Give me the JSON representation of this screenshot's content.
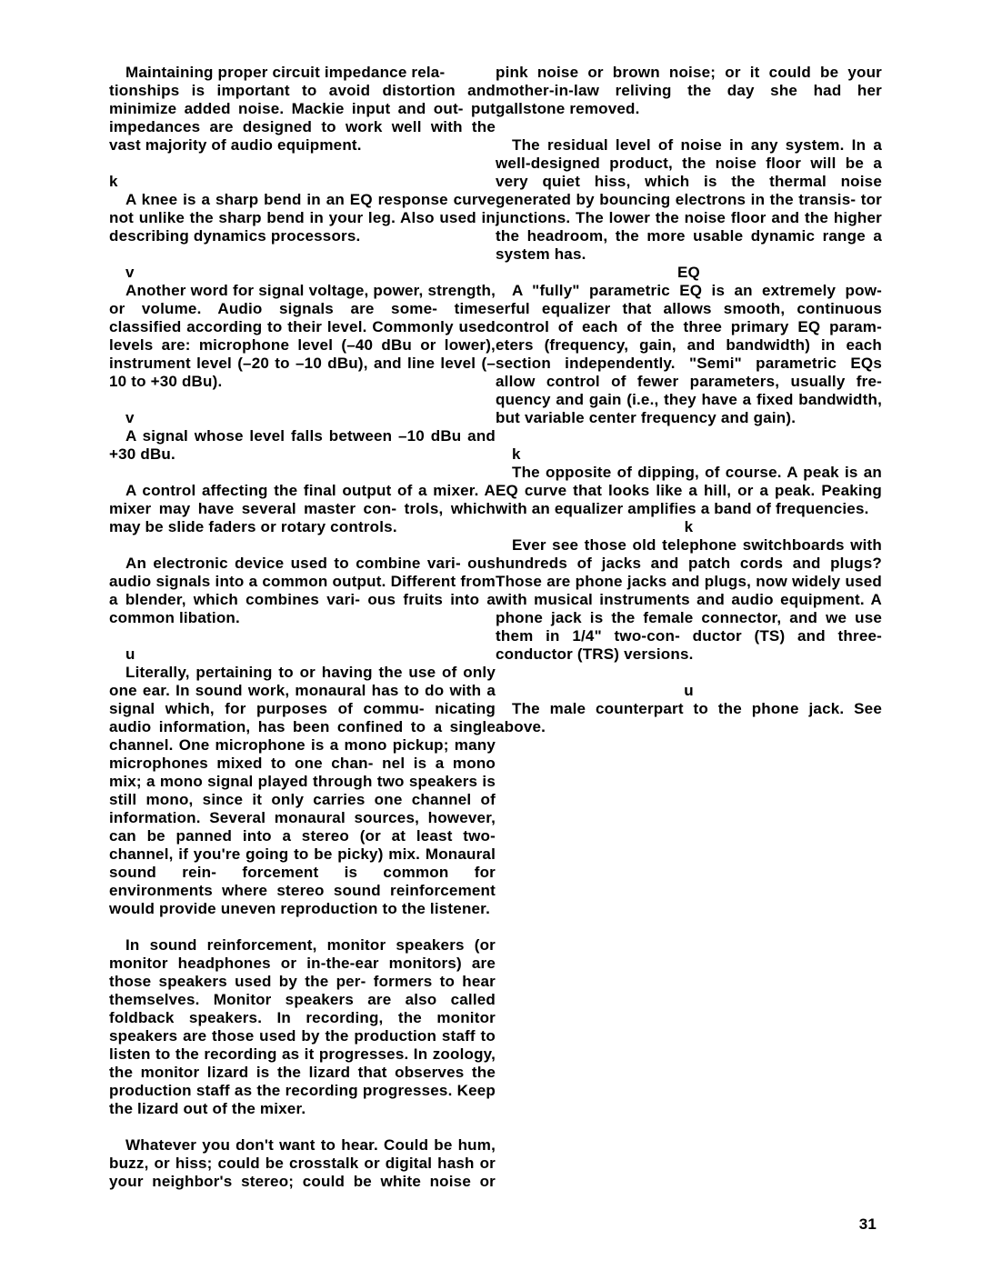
{
  "page_number": "31",
  "entries": [
    {
      "lead_in": "Maintaining proper circuit impedance rela-",
      "term": null,
      "body": "tionships is important to avoid distortion and minimize added noise. Mackie input and out- put impedances are designed to work well with the vast majority of audio equipment."
    },
    {
      "term": "k",
      "body": "A knee is a sharp bend in an EQ response curve not unlike the sharp bend in your leg. Also used in describing dynamics processors."
    },
    {
      "term": "v",
      "body": "Another word for signal voltage, power, strength, or volume. Audio signals are some- times classified according to their level. Commonly used levels are: microphone level (–40 dBu or lower), instrument level (–20 to –10 dBu), and line level (–10 to +30 dBu)."
    },
    {
      "term": "v",
      "body": "A signal whose level falls between –10 dBu and +30 dBu."
    },
    {
      "term": null,
      "body": "A control affecting the final output of a mixer. A mixer may have several master con- trols, which may be slide faders or rotary controls."
    },
    {
      "term": null,
      "body": "An electronic device used to combine vari- ous audio signals into a common output. Different from a blender, which combines vari- ous fruits into a common libation."
    },
    {
      "term": "u",
      "body": "Literally, pertaining to or having the use of only one ear. In sound work, monaural has to do with a signal which, for purposes of commu- nicating audio information, has been confined to a single channel. One microphone is a mono pickup; many microphones mixed to one chan- nel is a mono mix; a mono signal played through two speakers is still mono, since it only carries one channel of information. Several monaural sources, however, can be panned into a stereo (or at least two-channel, if you're going to be picky) mix. Monaural sound rein- forcement is common for environments where stereo sound reinforcement would provide uneven reproduction to the listener."
    },
    {
      "term": null,
      "body": "In sound reinforcement, monitor speakers (or monitor headphones or in-the-ear monitors) are those speakers used by the per- formers to hear themselves. Monitor speakers are also called foldback speakers. In recording, the monitor speakers are those used by the production staff to listen to the recording as it progresses. In zoology, the monitor lizard is the lizard that observes the production staff as the recording progresses. Keep the lizard out of the mixer."
    },
    {
      "term": null,
      "body": "Whatever you don't want to hear. Could be hum, buzz, or hiss; could be crosstalk or digital hash or your neighbor's stereo; could be white noise or pink noise or brown noise; or it could be your mother-in-law reliving the day she had her gallstone removed."
    },
    {
      "term": null,
      "body": "The residual level of noise in any system. In a well-designed product, the noise floor will be a very quiet hiss, which is the thermal noise generated by bouncing electrons in the transis- tor junctions. The lower the noise floor and the higher the headroom, the more usable dynamic range a system has."
    },
    {
      "term": "EQ",
      "center_term": true,
      "body": "A \"fully\" parametric EQ is an extremely pow- erful equalizer that allows smooth, continuous control of each of the three primary EQ param- eters (frequency, gain, and bandwidth) in each section independently. \"Semi\" parametric EQs allow control of fewer parameters, usually fre- quency and gain (i.e., they have a fixed bandwidth, but variable center frequency and gain)."
    },
    {
      "term": "k",
      "center_term": false,
      "body": "The opposite of dipping, of course. A peak is an EQ curve that looks like a hill, or a peak. Peaking with an equalizer amplifies a band of frequencies."
    },
    {
      "term": "k",
      "center_term": true,
      "body": "Ever see those old telephone switchboards with hundreds of jacks and patch cords and plugs? Those are phone jacks and plugs, now widely used with musical instruments and audio equipment. A phone jack is the female connector, and we use them in 1/4\" two-con- ductor (TS) and three-conductor (TRS) versions."
    },
    {
      "term": "u",
      "center_term": true,
      "body": "The male counterpart to the phone jack. See above."
    }
  ]
}
